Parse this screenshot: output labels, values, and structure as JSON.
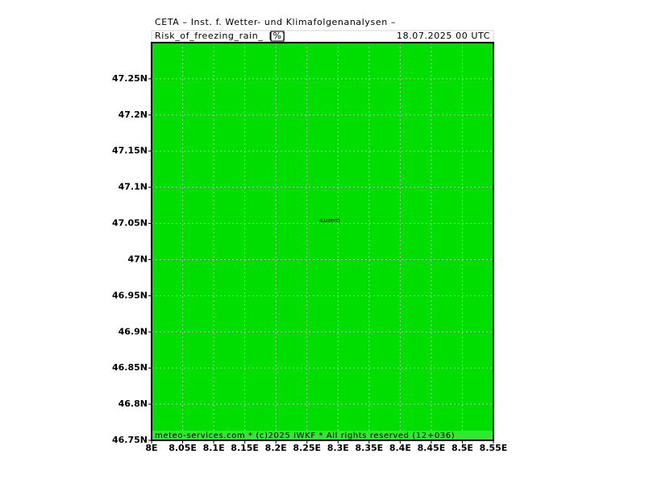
{
  "header": {
    "title": "CETA – Inst. f. Wetter- und Klimafolgenanalysen –",
    "parameter": "Risk_of_freezing_rain_",
    "unit": "[%]",
    "valid_time": "18.07.2025 00 UTC"
  },
  "map": {
    "xlim": [
      8,
      8.55
    ],
    "ylim": [
      46.75,
      47.3
    ],
    "xticks": [
      {
        "value": 8,
        "label": "8E"
      },
      {
        "value": 8.05,
        "label": "8.05E"
      },
      {
        "value": 8.1,
        "label": "8.1E"
      },
      {
        "value": 8.15,
        "label": "8.15E"
      },
      {
        "value": 8.2,
        "label": "8.2E"
      },
      {
        "value": 8.25,
        "label": "8.25E"
      },
      {
        "value": 8.3,
        "label": "8.3E"
      },
      {
        "value": 8.35,
        "label": "8.35E"
      },
      {
        "value": 8.4,
        "label": "8.4E"
      },
      {
        "value": 8.45,
        "label": "8.45E"
      },
      {
        "value": 8.5,
        "label": "8.5E"
      },
      {
        "value": 8.55,
        "label": "8.55E"
      }
    ],
    "yticks": [
      {
        "value": 46.75,
        "label": "46.75N"
      },
      {
        "value": 46.8,
        "label": "46.8N"
      },
      {
        "value": 46.85,
        "label": "46.85N"
      },
      {
        "value": 46.9,
        "label": "46.9N"
      },
      {
        "value": 46.95,
        "label": "46.95N"
      },
      {
        "value": 47,
        "label": "47N"
      },
      {
        "value": 47.05,
        "label": "47.05N"
      },
      {
        "value": 47.1,
        "label": "47.1N"
      },
      {
        "value": 47.15,
        "label": "47.15N"
      },
      {
        "value": 47.2,
        "label": "47.2N"
      },
      {
        "value": 47.25,
        "label": "47.25N"
      }
    ],
    "city": "Luzern"
  },
  "footer": "meteo-services.com * (c)2025 IWKF * All rights reserved (12+036)"
}
